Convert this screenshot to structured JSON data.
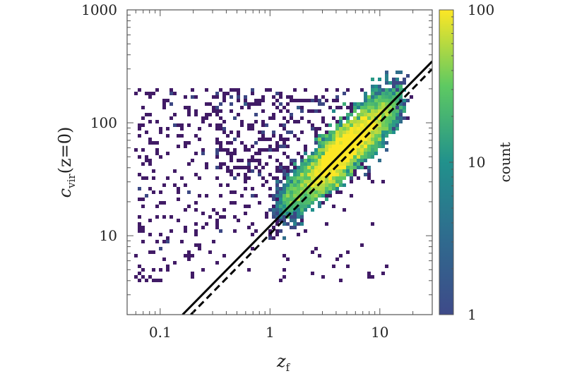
{
  "chart_data": {
    "type": "heatmap",
    "title": "",
    "xlabel": {
      "main": "z",
      "sub": "f"
    },
    "ylabel": {
      "main": "c",
      "sub": "vir",
      "suffix": "(z=0)"
    },
    "xscale": "log",
    "yscale": "log",
    "xlim": [
      0.05,
      30
    ],
    "ylim": [
      2,
      1000
    ],
    "xticks": [
      {
        "value": 0.1,
        "label": "0.1"
      },
      {
        "value": 1,
        "label": "1"
      },
      {
        "value": 10,
        "label": "10"
      }
    ],
    "yticks": [
      {
        "value": 10,
        "label": "10"
      },
      {
        "value": 100,
        "label": "100"
      },
      {
        "value": 1000,
        "label": "1000"
      }
    ],
    "colorbar": {
      "label": "count",
      "scale": "log",
      "range": [
        1,
        100
      ],
      "ticks": [
        {
          "value": 1,
          "label": "1"
        },
        {
          "value": 10,
          "label": "10"
        },
        {
          "value": 100,
          "label": "100"
        }
      ],
      "colormap": [
        "#440154",
        "#3b528b",
        "#21918c",
        "#5ec962",
        "#fde725"
      ]
    },
    "lines": [
      {
        "style": "solid",
        "color": "#000000",
        "points": [
          [
            0.16,
            2.0
          ],
          [
            30,
            350
          ]
        ]
      },
      {
        "style": "dashed",
        "color": "#000000",
        "points": [
          [
            0.19,
            2.0
          ],
          [
            30,
            300
          ]
        ]
      }
    ],
    "density_ridge": {
      "x": [
        1,
        3,
        5,
        8,
        15
      ],
      "y": [
        18,
        32,
        45,
        65,
        110
      ]
    }
  }
}
